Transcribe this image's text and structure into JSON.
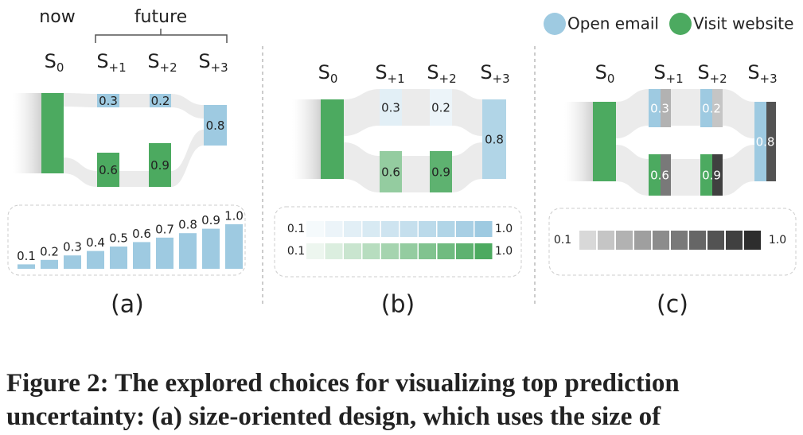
{
  "header": {
    "now": "now",
    "future": "future"
  },
  "legend": [
    "Open email",
    "Visit website"
  ],
  "states": [
    {
      "letter": "S",
      "sub": "0"
    },
    {
      "letter": "S",
      "sub": "+1"
    },
    {
      "letter": "S",
      "sub": "+2"
    },
    {
      "letter": "S",
      "sub": "+3"
    }
  ],
  "nodes": {
    "open_email": [
      "0.3",
      "0.2",
      "0.8"
    ],
    "visit_website": [
      "0.6",
      "0.9"
    ]
  },
  "size_scale": [
    "0.1",
    "0.2",
    "0.3",
    "0.4",
    "0.5",
    "0.6",
    "0.7",
    "0.8",
    "0.9",
    "1.0"
  ],
  "scale_range": {
    "min": "0.1",
    "max": "1.0"
  },
  "panels": [
    "(a)",
    "(b)",
    "(c)"
  ],
  "caption": [
    "Figure 2: The explored choices for visualizing top prediction",
    "uncertainty: (a) size-oriented design, which uses the size of"
  ]
}
